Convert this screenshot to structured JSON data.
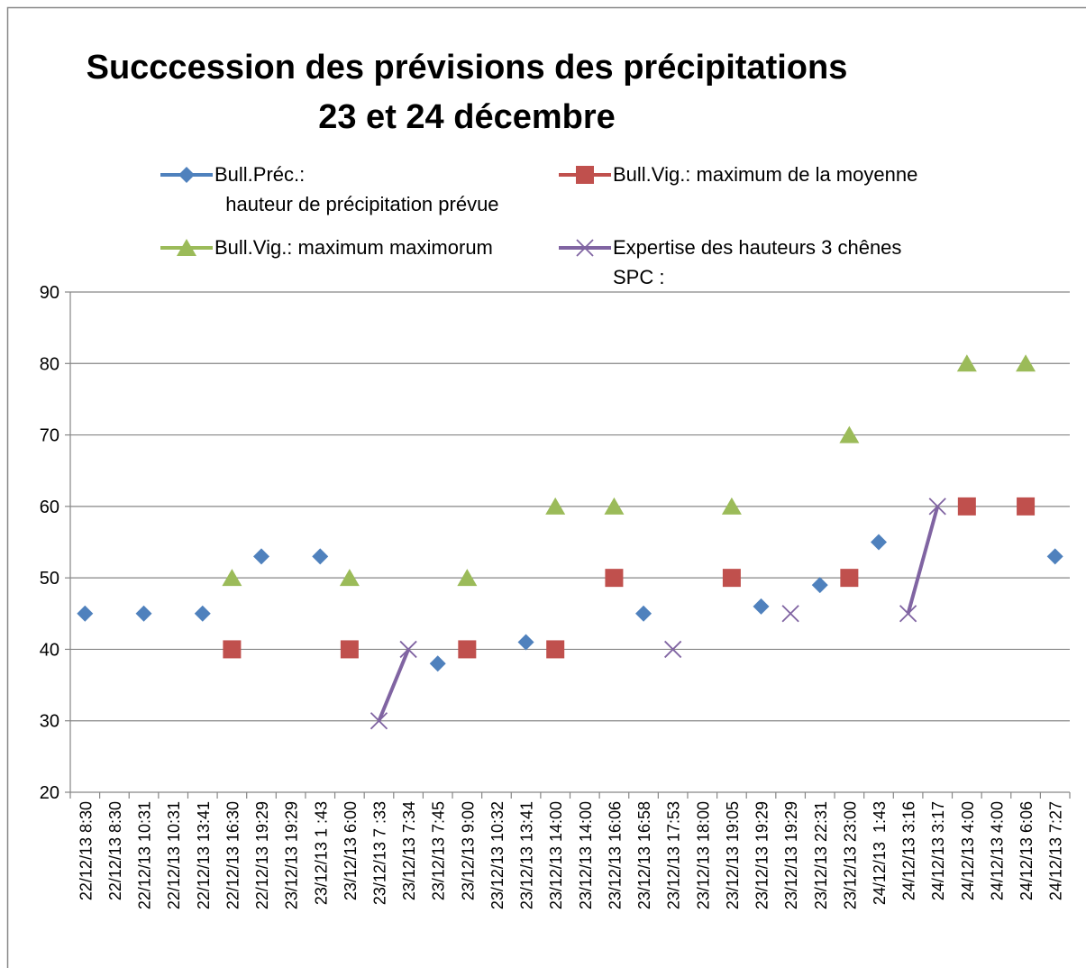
{
  "chart_data": {
    "type": "line",
    "title": "Succcession des prévisions des précipitations\n23 et 24 décembre",
    "categories": [
      "22/12/13 8:30",
      "22/12/13 8:30",
      "22/12/13 10:31",
      "22/12/13 10:31",
      "22/12/13 13:41",
      "22/12/13 16:30",
      "22/12/13 19:29",
      "23/12/13 19:29",
      "23/12/13 1 :43",
      "23/12/13 6:00",
      "23/12/13 7 :33",
      "23/12/13 7:34",
      "23/12/13 7:45",
      "23/12/13 9:00",
      "23/12/13 10:32",
      "23/12/13 13:41",
      "23/12/13 14:00",
      "23/12/13 14:00",
      "23/12/13 16:06",
      "23/12/13 16:58",
      "23/12/13 17:53",
      "23/12/13 18:00",
      "23/12/13 19:05",
      "23/12/13 19:29",
      "23/12/13 19:29",
      "23/12/13 22:31",
      "23/12/13 23:00",
      "24/12/13  1:43",
      "24/12/13 3:16",
      "24/12/13 3:17",
      "24/12/13 4:00",
      "24/12/13 4:00",
      "24/12/13 6:06",
      "24/12/13 7:27"
    ],
    "series": [
      {
        "name": "Bull.Préc.:\n  hauteur de précipitation prévue",
        "color": "#4f81bd",
        "marker": "diamond",
        "line": false,
        "values": [
          45,
          null,
          45,
          null,
          45,
          null,
          53,
          null,
          53,
          null,
          null,
          null,
          38,
          null,
          null,
          41,
          null,
          null,
          null,
          45,
          null,
          null,
          null,
          46,
          null,
          49,
          null,
          55,
          null,
          null,
          null,
          null,
          null,
          53
        ]
      },
      {
        "name": "Bull.Vig.: maximum de la moyenne",
        "color": "#c0504d",
        "marker": "square",
        "line": false,
        "values": [
          null,
          null,
          null,
          null,
          null,
          40,
          null,
          null,
          null,
          40,
          null,
          null,
          null,
          40,
          null,
          null,
          40,
          null,
          50,
          null,
          null,
          null,
          50,
          null,
          null,
          null,
          50,
          null,
          null,
          null,
          60,
          null,
          60,
          null
        ]
      },
      {
        "name": "Bull.Vig.: maximum maximorum",
        "color": "#9bbb59",
        "marker": "triangle",
        "line": false,
        "values": [
          null,
          null,
          null,
          null,
          null,
          50,
          null,
          null,
          null,
          50,
          null,
          null,
          null,
          50,
          null,
          null,
          60,
          null,
          60,
          null,
          null,
          null,
          60,
          null,
          null,
          null,
          70,
          null,
          null,
          null,
          80,
          null,
          80,
          null
        ]
      },
      {
        "name": "Expertise des hauteurs 3 chênes\nSPC :",
        "color": "#8064a2",
        "marker": "x",
        "line": true,
        "values": [
          null,
          null,
          null,
          null,
          null,
          null,
          null,
          null,
          null,
          null,
          30,
          40,
          null,
          null,
          null,
          null,
          null,
          null,
          null,
          null,
          40,
          null,
          null,
          null,
          45,
          null,
          null,
          null,
          45,
          60,
          null,
          null,
          null,
          null
        ]
      }
    ],
    "ylim": [
      20,
      90
    ],
    "yticks": [
      20,
      30,
      40,
      50,
      60,
      70,
      80,
      90
    ],
    "grid": true,
    "legend": "top"
  }
}
